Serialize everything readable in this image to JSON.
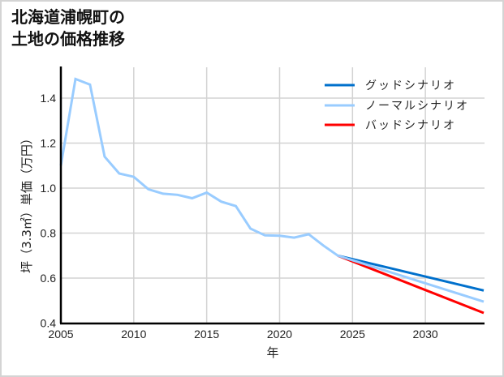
{
  "title": {
    "line1": "北海道浦幌町の",
    "line2": "土地の価格推移"
  },
  "chart_data": {
    "type": "line",
    "title": "北海道浦幌町の土地の価格推移",
    "xlabel": "年",
    "ylabel": "坪（3.3㎡）単価（万円）",
    "xlim": [
      2005,
      2034
    ],
    "ylim": [
      0.4,
      1.55
    ],
    "x_ticks": [
      "2005",
      "2010",
      "2015",
      "2020",
      "2025",
      "2030"
    ],
    "y_ticks": [
      "0.4",
      "0.6",
      "0.8",
      "1.0",
      "1.2",
      "1.4"
    ],
    "grid": true,
    "legend_position": "upper right",
    "series": [
      {
        "name": "ノーマルシナリオ",
        "color": "#99ccff",
        "x": [
          2005,
          2006,
          2007,
          2008,
          2009,
          2010,
          2011,
          2012,
          2013,
          2014,
          2015,
          2016,
          2017,
          2018,
          2019,
          2020,
          2021,
          2022,
          2023,
          2024,
          2034
        ],
        "values": [
          1.1,
          1.485,
          1.46,
          1.14,
          1.065,
          1.05,
          0.995,
          0.975,
          0.97,
          0.955,
          0.98,
          0.94,
          0.92,
          0.82,
          0.79,
          0.788,
          0.78,
          0.795,
          0.745,
          0.7,
          0.495
        ]
      },
      {
        "name": "グッドシナリオ",
        "color": "#0070cc",
        "x": [
          2024,
          2034
        ],
        "values": [
          0.7,
          0.545
        ]
      },
      {
        "name": "バッドシナリオ",
        "color": "#ff0000",
        "x": [
          2024,
          2034
        ],
        "values": [
          0.7,
          0.445
        ]
      }
    ]
  },
  "legend": {
    "items": [
      {
        "label": "グッドシナリオ",
        "color": "#0070cc"
      },
      {
        "label": "ノーマルシナリオ",
        "color": "#99ccff"
      },
      {
        "label": "バッドシナリオ",
        "color": "#ff0000"
      }
    ]
  },
  "axes": {
    "xlabel": "年",
    "ylabel": "坪（3.3㎡）単価（万円）"
  }
}
